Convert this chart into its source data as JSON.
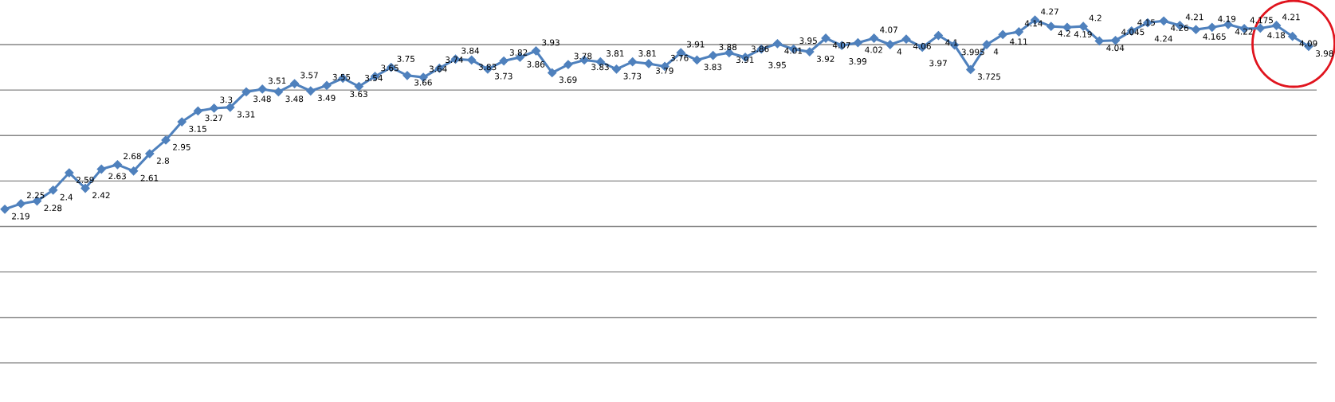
{
  "chart_data": {
    "type": "line",
    "categories": [
      null,
      null,
      null,
      null,
      null,
      null,
      null,
      null,
      null,
      null,
      null,
      null,
      null,
      null,
      null,
      null,
      null,
      null,
      null,
      null,
      null,
      null,
      null,
      null,
      null,
      null,
      null,
      null,
      null,
      null,
      null,
      null,
      null,
      null,
      null,
      null,
      null,
      null,
      null,
      null,
      null,
      null,
      null,
      null,
      null,
      null,
      null,
      null,
      null,
      null,
      null,
      null,
      null,
      null,
      null,
      null,
      null,
      null,
      null,
      null,
      null,
      null,
      null,
      null,
      null,
      null,
      null,
      null,
      null,
      null,
      null,
      null,
      null,
      null,
      null,
      null,
      null,
      null,
      null,
      null,
      null,
      null
    ],
    "series": [
      {
        "color": "#4f81bd",
        "values": [
          2.19,
          2.25,
          2.28,
          2.4,
          2.59,
          2.42,
          2.63,
          2.68,
          2.61,
          2.8,
          2.95,
          3.15,
          3.27,
          3.3,
          3.31,
          3.48,
          3.51,
          3.48,
          3.57,
          3.49,
          3.55,
          3.63,
          3.54,
          3.65,
          3.75,
          3.66,
          3.64,
          3.74,
          3.84,
          3.83,
          3.73,
          3.82,
          3.86,
          3.93,
          3.69,
          3.78,
          3.83,
          3.81,
          3.73,
          3.81,
          3.79,
          3.76,
          3.91,
          3.83,
          3.88,
          3.91,
          3.86,
          3.95,
          4.01,
          3.95,
          3.92,
          4.07,
          3.99,
          4.02,
          4.07,
          4,
          4.06,
          3.97,
          4.1,
          3.995,
          3.725,
          4,
          4.11,
          4.14,
          4.27,
          4.2,
          4.19,
          4.2,
          4.04,
          4.045,
          4.15,
          4.24,
          4.26,
          4.21,
          4.165,
          4.19,
          4.22,
          4.175,
          4.18,
          4.21,
          4.09,
          3.98
        ]
      }
    ],
    "yticks": [
      {
        "value": 0.5,
        "label": null
      },
      {
        "value": 1,
        "label": null
      },
      {
        "value": 1.5,
        "label": null
      },
      {
        "value": 2,
        "label": null
      },
      {
        "value": 2.5,
        "label": null
      },
      {
        "value": 3,
        "label": null
      },
      {
        "value": 3.5,
        "label": null
      },
      {
        "value": 4,
        "label": null
      }
    ],
    "grid": "y",
    "legend": false,
    "marker": "diamond",
    "line_style": "solid",
    "data_labels": true
  }
}
